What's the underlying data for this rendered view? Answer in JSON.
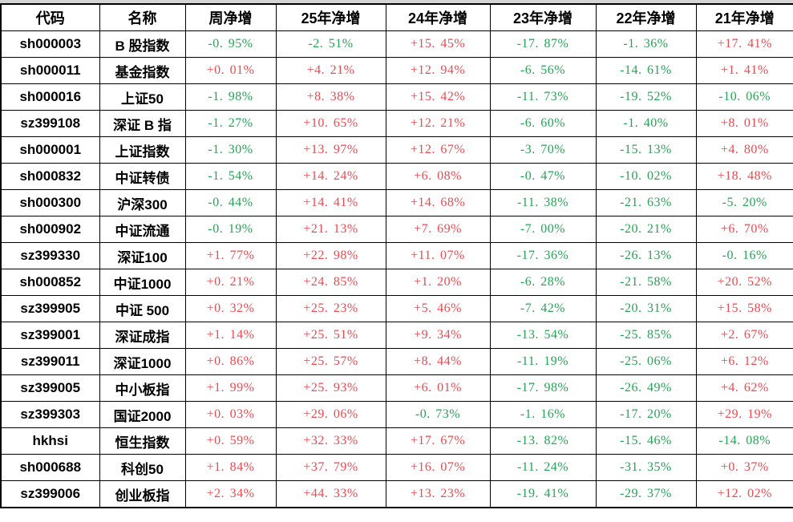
{
  "colors": {
    "up": "#ec4a50",
    "down": "#27a356",
    "border": "#000000",
    "top_strip": "#d4d4d4",
    "header_text": "#000000",
    "background": "#ffffff"
  },
  "chart_data": {
    "type": "table",
    "title": "",
    "columns": [
      {
        "key": "code",
        "label": "代码"
      },
      {
        "key": "name",
        "label": "名称"
      },
      {
        "key": "week",
        "label": "周净增"
      },
      {
        "key": "y25",
        "label": "25年净增"
      },
      {
        "key": "y24",
        "label": "24年净增"
      },
      {
        "key": "y23",
        "label": "23年净增"
      },
      {
        "key": "y22",
        "label": "22年净增"
      },
      {
        "key": "y21",
        "label": "21年净增"
      }
    ],
    "rows": [
      {
        "code": "sh000003",
        "name": "B 股指数",
        "week": "-0.95%",
        "y25": "-2.51%",
        "y24": "+15.45%",
        "y23": "-17.87%",
        "y22": "-1.36%",
        "y21": "+17.41%"
      },
      {
        "code": "sh000011",
        "name": "基金指数",
        "week": "+0.01%",
        "y25": "+4.21%",
        "y24": "+12.94%",
        "y23": "-6.56%",
        "y22": "-14.61%",
        "y21": "+1.41%"
      },
      {
        "code": "sh000016",
        "name": "上证50",
        "week": "-1.98%",
        "y25": "+8.38%",
        "y24": "+15.42%",
        "y23": "-11.73%",
        "y22": "-19.52%",
        "y21": "-10.06%"
      },
      {
        "code": "sz399108",
        "name": "深证 B 指",
        "week": "-1.27%",
        "y25": "+10.65%",
        "y24": "+12.21%",
        "y23": "-6.60%",
        "y22": "-1.40%",
        "y21": "+8.01%"
      },
      {
        "code": "sh000001",
        "name": "上证指数",
        "week": "-1.30%",
        "y25": "+13.97%",
        "y24": "+12.67%",
        "y23": "-3.70%",
        "y22": "-15.13%",
        "y21": "+4.80%"
      },
      {
        "code": "sh000832",
        "name": "中证转债",
        "week": "-1.54%",
        "y25": "+14.24%",
        "y24": "+6.08%",
        "y23": "-0.47%",
        "y22": "-10.02%",
        "y21": "+18.48%"
      },
      {
        "code": "sh000300",
        "name": "沪深300",
        "week": "-0.44%",
        "y25": "+14.41%",
        "y24": "+14.68%",
        "y23": "-11.38%",
        "y22": "-21.63%",
        "y21": "-5.20%"
      },
      {
        "code": "sh000902",
        "name": "中证流通",
        "week": "-0.19%",
        "y25": "+21.13%",
        "y24": "+7.69%",
        "y23": "-7.00%",
        "y22": "-20.21%",
        "y21": "+6.70%"
      },
      {
        "code": "sz399330",
        "name": "深证100",
        "week": "+1.77%",
        "y25": "+22.98%",
        "y24": "+11.07%",
        "y23": "-17.36%",
        "y22": "-26.13%",
        "y21": "-0.16%"
      },
      {
        "code": "sh000852",
        "name": "中证1000",
        "week": "+0.21%",
        "y25": "+24.85%",
        "y24": "+1.20%",
        "y23": "-6.28%",
        "y22": "-21.58%",
        "y21": "+20.52%"
      },
      {
        "code": "sz399905",
        "name": "中证 500",
        "week": "+0.32%",
        "y25": "+25.23%",
        "y24": "+5.46%",
        "y23": "-7.42%",
        "y22": "-20.31%",
        "y21": "+15.58%"
      },
      {
        "code": "sz399001",
        "name": "深证成指",
        "week": "+1.14%",
        "y25": "+25.51%",
        "y24": "+9.34%",
        "y23": "-13.54%",
        "y22": "-25.85%",
        "y21": "+2.67%"
      },
      {
        "code": "sz399011",
        "name": "深证1000",
        "week": "+0.86%",
        "y25": "+25.57%",
        "y24": "+8.44%",
        "y23": "-11.19%",
        "y22": "-25.06%",
        "y21": "+6.12%"
      },
      {
        "code": "sz399005",
        "name": "中小板指",
        "week": "+1.99%",
        "y25": "+25.93%",
        "y24": "+6.01%",
        "y23": "-17.98%",
        "y22": "-26.49%",
        "y21": "+4.62%"
      },
      {
        "code": "sz399303",
        "name": "国证2000",
        "week": "+0.03%",
        "y25": "+29.06%",
        "y24": "-0.73%",
        "y23": "-1.16%",
        "y22": "-17.20%",
        "y21": "+29.19%"
      },
      {
        "code": "hkhsi",
        "name": "恒生指数",
        "week": "+0.59%",
        "y25": "+32.33%",
        "y24": "+17.67%",
        "y23": "-13.82%",
        "y22": "-15.46%",
        "y21": "-14.08%"
      },
      {
        "code": "sh000688",
        "name": "科创50",
        "week": "+1.84%",
        "y25": "+37.79%",
        "y24": "+16.07%",
        "y23": "-11.24%",
        "y22": "-31.35%",
        "y21": "+0.37%"
      },
      {
        "code": "sz399006",
        "name": "创业板指",
        "week": "+2.34%",
        "y25": "+44.33%",
        "y24": "+13.23%",
        "y23": "-19.41%",
        "y22": "-29.37%",
        "y21": "+12.02%"
      }
    ]
  }
}
